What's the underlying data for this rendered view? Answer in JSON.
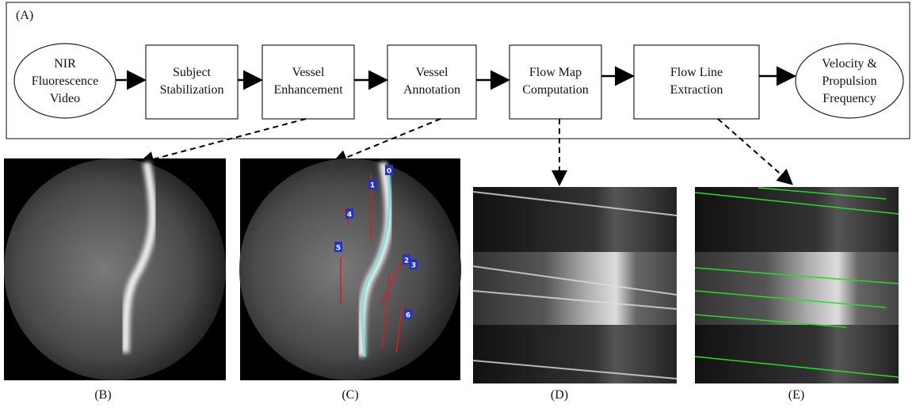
{
  "panel_a": {
    "label": "(A)",
    "nodes": [
      {
        "lines": [
          "NIR",
          "Fluorescence",
          "Video"
        ]
      },
      {
        "lines": [
          "Subject",
          "Stabilization"
        ]
      },
      {
        "lines": [
          "Vessel",
          "Enhancement"
        ]
      },
      {
        "lines": [
          "Vessel",
          "Annotation"
        ]
      },
      {
        "lines": [
          "Flow Map",
          "Computation"
        ]
      },
      {
        "lines": [
          "Flow Line",
          "Extraction"
        ]
      },
      {
        "lines": [
          "Velocity &",
          "Propulsion",
          "Frequency"
        ]
      }
    ]
  },
  "panels": [
    {
      "label": "(B)"
    },
    {
      "label": "(C)"
    },
    {
      "label": "(D)"
    },
    {
      "label": "(E)"
    }
  ],
  "annotation_markers": [
    "0",
    "1",
    "2",
    "3",
    "4",
    "5",
    "6"
  ]
}
